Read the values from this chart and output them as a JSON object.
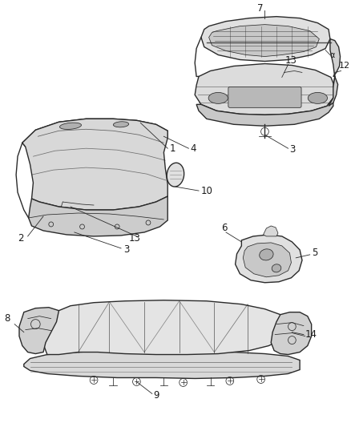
{
  "bg_color": "#ffffff",
  "line_color": "#2a2a2a",
  "label_color": "#1a1a1a",
  "figsize": [
    4.38,
    5.33
  ],
  "dpi": 100,
  "lw_main": 1.0,
  "lw_thin": 0.55,
  "lw_thick": 1.3
}
